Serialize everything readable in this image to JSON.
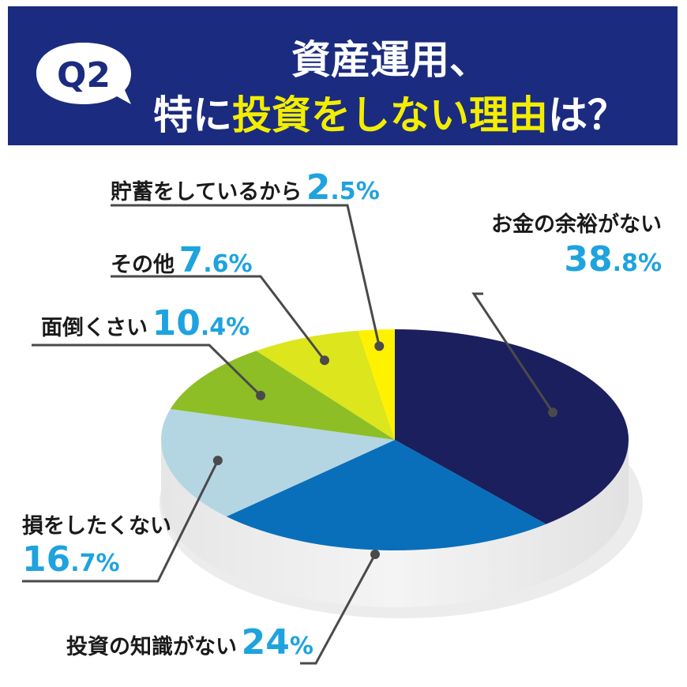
{
  "header": {
    "badge": "Q2",
    "line1": "資産運用、",
    "line2_pre": "特に",
    "line2_hl": "投資をしない理由",
    "line2_post": "は？",
    "bg_color": "#1b2b80",
    "highlight_color": "#f3ee00"
  },
  "chart_data": {
    "type": "pie",
    "title": "資産運用、特に投資をしない理由は？",
    "slices": [
      {
        "label": "お金の余裕がない",
        "value": 38.8,
        "int": "38",
        "dec": ".8",
        "color": "#1b1f5e"
      },
      {
        "label": "投資の知識がない",
        "value": 24.0,
        "int": "24",
        "dec": "",
        "color": "#0a6fba"
      },
      {
        "label": "損をしたくない",
        "value": 16.7,
        "int": "16",
        "dec": ".7",
        "color": "#b4d6e2"
      },
      {
        "label": "面倒くさい",
        "value": 10.4,
        "int": "10",
        "dec": ".4",
        "color": "#8dbe26"
      },
      {
        "label": "その他",
        "value": 7.6,
        "int": "7",
        "dec": ".6",
        "color": "#dde51c"
      },
      {
        "label": "貯蓄をしているから",
        "value": 2.5,
        "int": "2",
        "dec": ".5",
        "color": "#fff200"
      }
    ],
    "percent_sign": "%",
    "percent_color": "#1ea3df"
  }
}
